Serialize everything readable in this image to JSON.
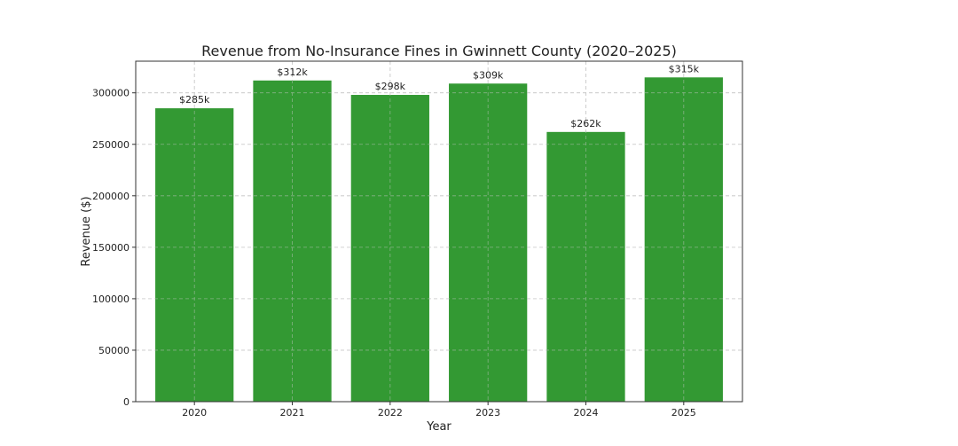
{
  "chart_data": {
    "type": "bar",
    "title": "Revenue from No-Insurance Fines in Gwinnett County (2020–2025)",
    "xlabel": "Year",
    "ylabel": "Revenue ($)",
    "categories": [
      "2020",
      "2021",
      "2022",
      "2023",
      "2024",
      "2025"
    ],
    "values": [
      285000,
      312000,
      298000,
      309000,
      262000,
      315000
    ],
    "data_labels": [
      "$285k",
      "$312k",
      "$298k",
      "$309k",
      "$262k",
      "$315k"
    ],
    "ylim": [
      0,
      330750
    ],
    "yticks": [
      0,
      50000,
      100000,
      150000,
      200000,
      250000,
      300000
    ],
    "ytick_labels": [
      "0",
      "50000",
      "100000",
      "150000",
      "200000",
      "250000",
      "300000"
    ],
    "grid": true,
    "bar_color": "#339933",
    "grid_color": "#c8c8c8"
  }
}
